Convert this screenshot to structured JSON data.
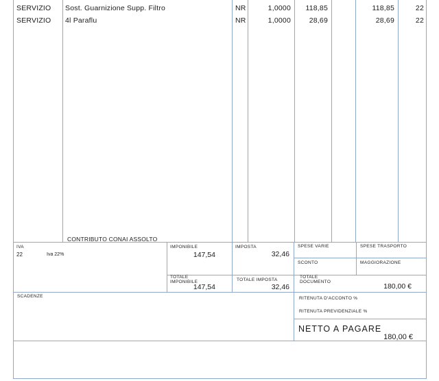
{
  "items": [
    {
      "type": "SERVIZIO",
      "description": "Sost. Guarnizione Supp. Filtro",
      "um": "NR",
      "qty": "1,0000",
      "price": "118,85",
      "total": "118,85",
      "vat": "22"
    },
    {
      "type": "SERVIZIO",
      "description": "4l Paraflu",
      "um": "NR",
      "qty": "1,0000",
      "price": "28,69",
      "total": "28,69",
      "vat": "22"
    }
  ],
  "conai_note": "CONTRIBUTO CONAI ASSOLTO",
  "vat_summary": {
    "iva_label": "IVA",
    "iva_code": "22",
    "iva_desc": "Iva 22%",
    "imponibile_label": "IMPONIBILE",
    "imponibile_value": "147,54",
    "imposta_label": "IMPOSTA",
    "imposta_value": "32,46",
    "totale_imponibile_label_1": "TOTALE",
    "totale_imponibile_label_2": "IMPONIBILE",
    "totale_imponibile_value": "147,54",
    "totale_imposta_label": "TOTALE IMPOSTA",
    "totale_imposta_value": "32,46"
  },
  "extras": {
    "spese_varie_label": "SPESE VARIE",
    "spese_trasporto_label": "SPESE TRASPORTO",
    "sconto_label": "SCONTO",
    "maggiorazione_label": "MAGGIORAZIONE",
    "totale_documento_label_1": "TOTALE",
    "totale_documento_label_2": "DOCUMENTO",
    "totale_documento_value": "180,00 €"
  },
  "footer": {
    "scadenze_label": "SCADENZE",
    "ritenuta_acconto_label": "RITENUTA D'ACCONTO %",
    "ritenuta_previdenziale_label": "RITENUTA PREVIDENZIALE %",
    "netto_label": "NETTO A PAGARE",
    "netto_value": "180,00 €"
  }
}
